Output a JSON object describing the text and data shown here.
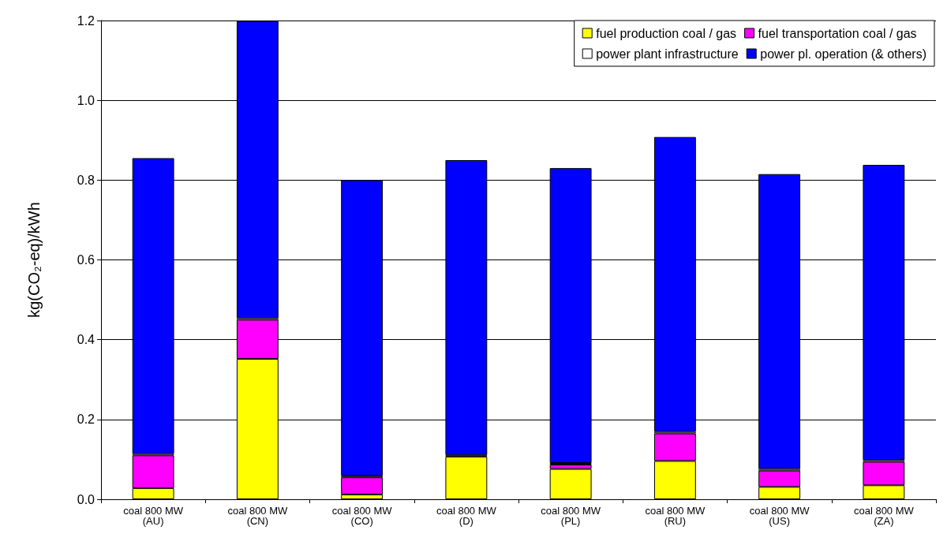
{
  "chart_data": {
    "type": "bar",
    "stacked": true,
    "ylabel": "kg(CO₂-eq)/kWh",
    "categories": [
      "coal 800 MW\n(AU)",
      "coal 800 MW\n(CN)",
      "coal 800 MW\n(CO)",
      "coal 800 MW\n(D)",
      "coal 800 MW\n(PL)",
      "coal 800 MW\n(RU)",
      "coal 800 MW\n(US)",
      "coal 800 MW\n(ZA)"
    ],
    "series": [
      {
        "name": "fuel production coal / gas",
        "color": "#ffff00",
        "values": [
          0.028,
          0.352,
          0.012,
          0.107,
          0.076,
          0.096,
          0.031,
          0.035
        ]
      },
      {
        "name": "fuel transportation coal / gas",
        "color": "#ff00ff",
        "values": [
          0.082,
          0.098,
          0.043,
          null,
          0.011,
          0.069,
          0.041,
          0.059
        ]
      },
      {
        "name": "power plant infrastructure",
        "color": "#ffffff",
        "values": [
          0.004,
          0.004,
          0.004,
          0.004,
          0.004,
          0.004,
          0.004,
          0.004
        ]
      },
      {
        "name": "power pl. operation (& others)",
        "color": "#0000ff",
        "values": [
          0.741,
          0.744,
          0.741,
          0.739,
          0.739,
          0.739,
          0.739,
          0.74
        ]
      }
    ],
    "ylim": [
      0,
      1.2
    ],
    "yticks": [
      {
        "value": 0,
        "label": "0.0"
      },
      {
        "value": 0.2,
        "label": "0.2"
      },
      {
        "value": 0.4,
        "label": "0.4"
      },
      {
        "value": 0.6,
        "label": "0.6"
      },
      {
        "value": 0.8,
        "label": "0.8"
      },
      {
        "value": 1,
        "label": "1.0"
      },
      {
        "value": 1.2,
        "label": "1.2"
      }
    ],
    "grid": "y",
    "legend": "top right"
  }
}
